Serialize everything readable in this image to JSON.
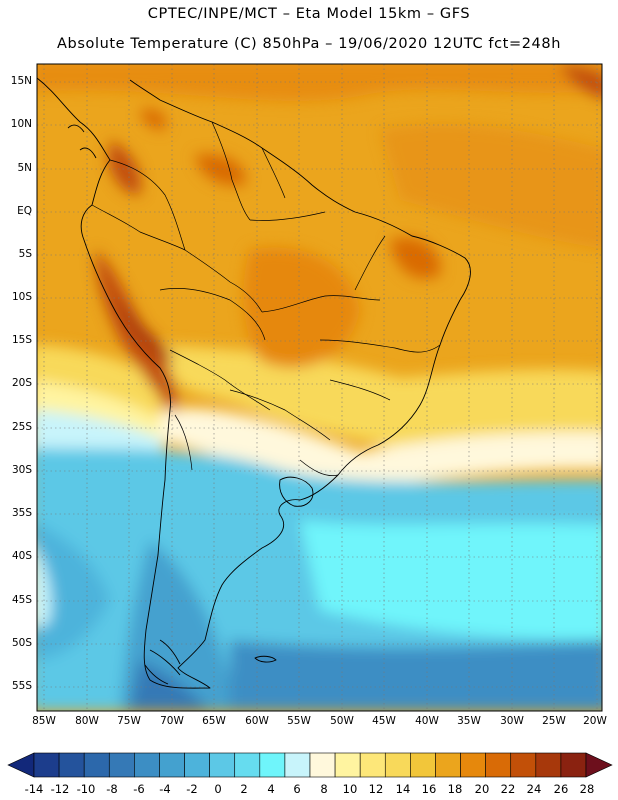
{
  "header": {
    "line1": "CPTEC/INPE/MCT –  Eta Model 15km – GFS",
    "line2": "Absolute Temperature (C) 850hPa – 19/06/2020 12UTC fct=248h"
  },
  "map": {
    "lat_labels": [
      "15N",
      "10N",
      "5N",
      "EQ",
      "5S",
      "10S",
      "15S",
      "20S",
      "25S",
      "30S",
      "35S",
      "40S",
      "45S",
      "50S",
      "55S"
    ],
    "lon_labels": [
      "85W",
      "80W",
      "75W",
      "70W",
      "65W",
      "60W",
      "55W",
      "50W",
      "45W",
      "40W",
      "35W",
      "30W",
      "25W",
      "20W"
    ]
  },
  "colorbar": {
    "labels": [
      "-14",
      "-12",
      "-10",
      "-8",
      "-6",
      "-4",
      "-2",
      "0",
      "2",
      "4",
      "6",
      "8",
      "10",
      "12",
      "14",
      "16",
      "18",
      "20",
      "22",
      "24",
      "26",
      "28"
    ],
    "colors": [
      "#1c3d8c",
      "#24539c",
      "#2c68ab",
      "#3579b6",
      "#3c8ec4",
      "#44a1cf",
      "#4db3db",
      "#5cc8e6",
      "#66dcef",
      "#6ff5fb",
      "#c8f4fb",
      "#fff8dc",
      "#fff4a0",
      "#fde779",
      "#f8d95a",
      "#f2c63a",
      "#eba51d",
      "#e6880c",
      "#d96b06",
      "#c25008",
      "#a7380b",
      "#8a2210"
    ],
    "arrow_left_color": "#12287a",
    "arrow_right_color": "#6d0f1c"
  }
}
